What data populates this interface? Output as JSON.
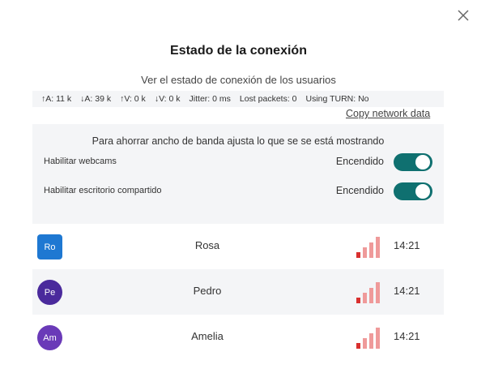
{
  "modal": {
    "title": "Estado de la conexión",
    "subtitle": "Ver el estado de conexión de los usuarios",
    "close_icon": "close-icon"
  },
  "network": {
    "audio_up": "↑A: 11 k",
    "audio_down": "↓A: 39 k",
    "video_up": "↑V: 0 k",
    "video_down": "↓V: 0 k",
    "jitter": "Jitter: 0 ms",
    "lost_packets": "Lost packets: 0",
    "turn": "Using TURN: No",
    "copy_label": "Copy network data"
  },
  "data_saving": {
    "note": "Para ahorrar ancho de banda ajusta lo que se se está mostrando",
    "settings": [
      {
        "label": "Habilitar webcams",
        "state": "Encendido",
        "enabled": true
      },
      {
        "label": "Habilitar escritorio compartido",
        "state": "Encendido",
        "enabled": true
      }
    ]
  },
  "users": [
    {
      "initials": "Ro",
      "name": "Rosa",
      "time": "14:21",
      "avatar_color": "#1e78d2",
      "avatar_shape": "square",
      "signal_level": 1
    },
    {
      "initials": "Pe",
      "name": "Pedro",
      "time": "14:21",
      "avatar_color": "#4a2a9c",
      "avatar_shape": "circle",
      "signal_level": 1
    },
    {
      "initials": "Am",
      "name": "Amelia",
      "time": "14:21",
      "avatar_color": "#6a3ab8",
      "avatar_shape": "circle",
      "signal_level": 1
    }
  ],
  "colors": {
    "signal_active": "#d9302f",
    "signal_inactive": "#ef9a9a",
    "toggle_on": "#0f7070"
  }
}
